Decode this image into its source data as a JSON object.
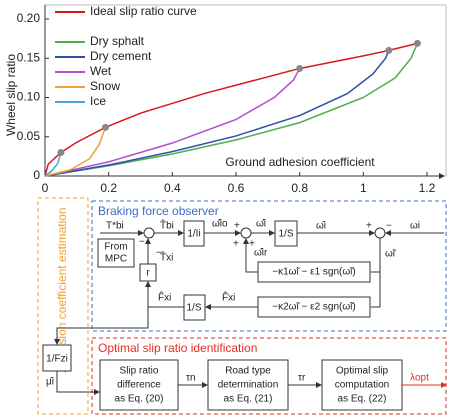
{
  "chart_data": {
    "type": "line",
    "ylabel": "Wheel slip ratio",
    "xlabel": "Ground adhesion coefficient",
    "xlim": [
      0,
      1.2
    ],
    "ylim": [
      0,
      0.2
    ],
    "xticks": [
      0,
      0.2,
      0.4,
      0.6,
      0.8,
      1,
      1.2
    ],
    "yticks": [
      0,
      0.05,
      {
        "value": 0.1,
        "label": "0.10"
      },
      0.15,
      {
        "value": 0.2,
        "label": "0.20"
      }
    ],
    "series": [
      {
        "name": "Ideal slip ratio curve",
        "color": "#d7191c",
        "x": [
          0,
          0.01,
          0.05,
          0.1,
          0.19,
          0.3,
          0.5,
          0.8,
          1.0,
          1.08,
          1.17
        ],
        "values": [
          0,
          0.015,
          0.03,
          0.043,
          0.062,
          0.08,
          0.105,
          0.137,
          0.153,
          0.16,
          0.169
        ]
      },
      {
        "name": "Dry sphalt",
        "color": "#4daf4a",
        "x": [
          0,
          0.2,
          0.4,
          0.6,
          0.8,
          1.0,
          1.1,
          1.15,
          1.17
        ],
        "values": [
          0,
          0.013,
          0.028,
          0.046,
          0.068,
          0.1,
          0.125,
          0.15,
          0.169
        ]
      },
      {
        "name": "Dry cement",
        "color": "#2c4fa8",
        "x": [
          0,
          0.2,
          0.4,
          0.6,
          0.8,
          0.95,
          1.03,
          1.07,
          1.08
        ],
        "values": [
          0,
          0.014,
          0.031,
          0.051,
          0.077,
          0.105,
          0.13,
          0.15,
          0.16
        ]
      },
      {
        "name": "Wet",
        "color": "#b04fd0",
        "x": [
          0,
          0.2,
          0.4,
          0.6,
          0.72,
          0.78,
          0.8
        ],
        "values": [
          0,
          0.018,
          0.042,
          0.072,
          0.1,
          0.122,
          0.137
        ]
      },
      {
        "name": "Snow",
        "color": "#f0a030",
        "x": [
          0,
          0.08,
          0.14,
          0.17,
          0.19
        ],
        "values": [
          0,
          0.008,
          0.022,
          0.04,
          0.062
        ]
      },
      {
        "name": "Ice",
        "color": "#4aa0d8",
        "x": [
          0,
          0.02,
          0.04,
          0.05
        ],
        "values": [
          0,
          0.006,
          0.016,
          0.03
        ]
      }
    ]
  },
  "diagram": {
    "observer_title": "Braking force observer",
    "estimation_title": "Adhesion coefficient estimation",
    "identification_title": "Optimal slip ratio identification",
    "signals": {
      "t_ref": "T*bi",
      "t_hat": "T̂bi",
      "w_dot_o": "ω̂̇io",
      "w_dot": "ω̂̇i",
      "w_hat": "ω̂i",
      "w": "ωi",
      "w_err": "ω̃i",
      "w_dot_r": "ω̂̇ir",
      "t_dot": "T̂̇xi",
      "f_hat": "F̂xi",
      "f_dot": "F̂̇xi",
      "mu": "μ̂i",
      "tau_n": "τn",
      "tau_r": "τr",
      "lambda": "λopt"
    },
    "blocks": {
      "mpc": [
        "From",
        "MPC"
      ],
      "inertia": "1/Ii",
      "int1": "1/S",
      "obs1": "−κ1ω̃i − ε1 sgn(ω̃i)",
      "r": "r",
      "obs2": "−κ2ω̃i − ε2 sgn(ω̃i)",
      "int2": "1/S",
      "fz": "1/Fzi",
      "slip": [
        "Slip ratio",
        "difference",
        "as Eq. (20)"
      ],
      "road": [
        "Road type",
        "determination",
        "as Eq. (21)"
      ],
      "opt": [
        "Optimal slip",
        "computation",
        "as Eq. (22)"
      ]
    },
    "signs": [
      "−",
      "+",
      "+",
      "+",
      "+",
      "−",
      "−"
    ]
  }
}
